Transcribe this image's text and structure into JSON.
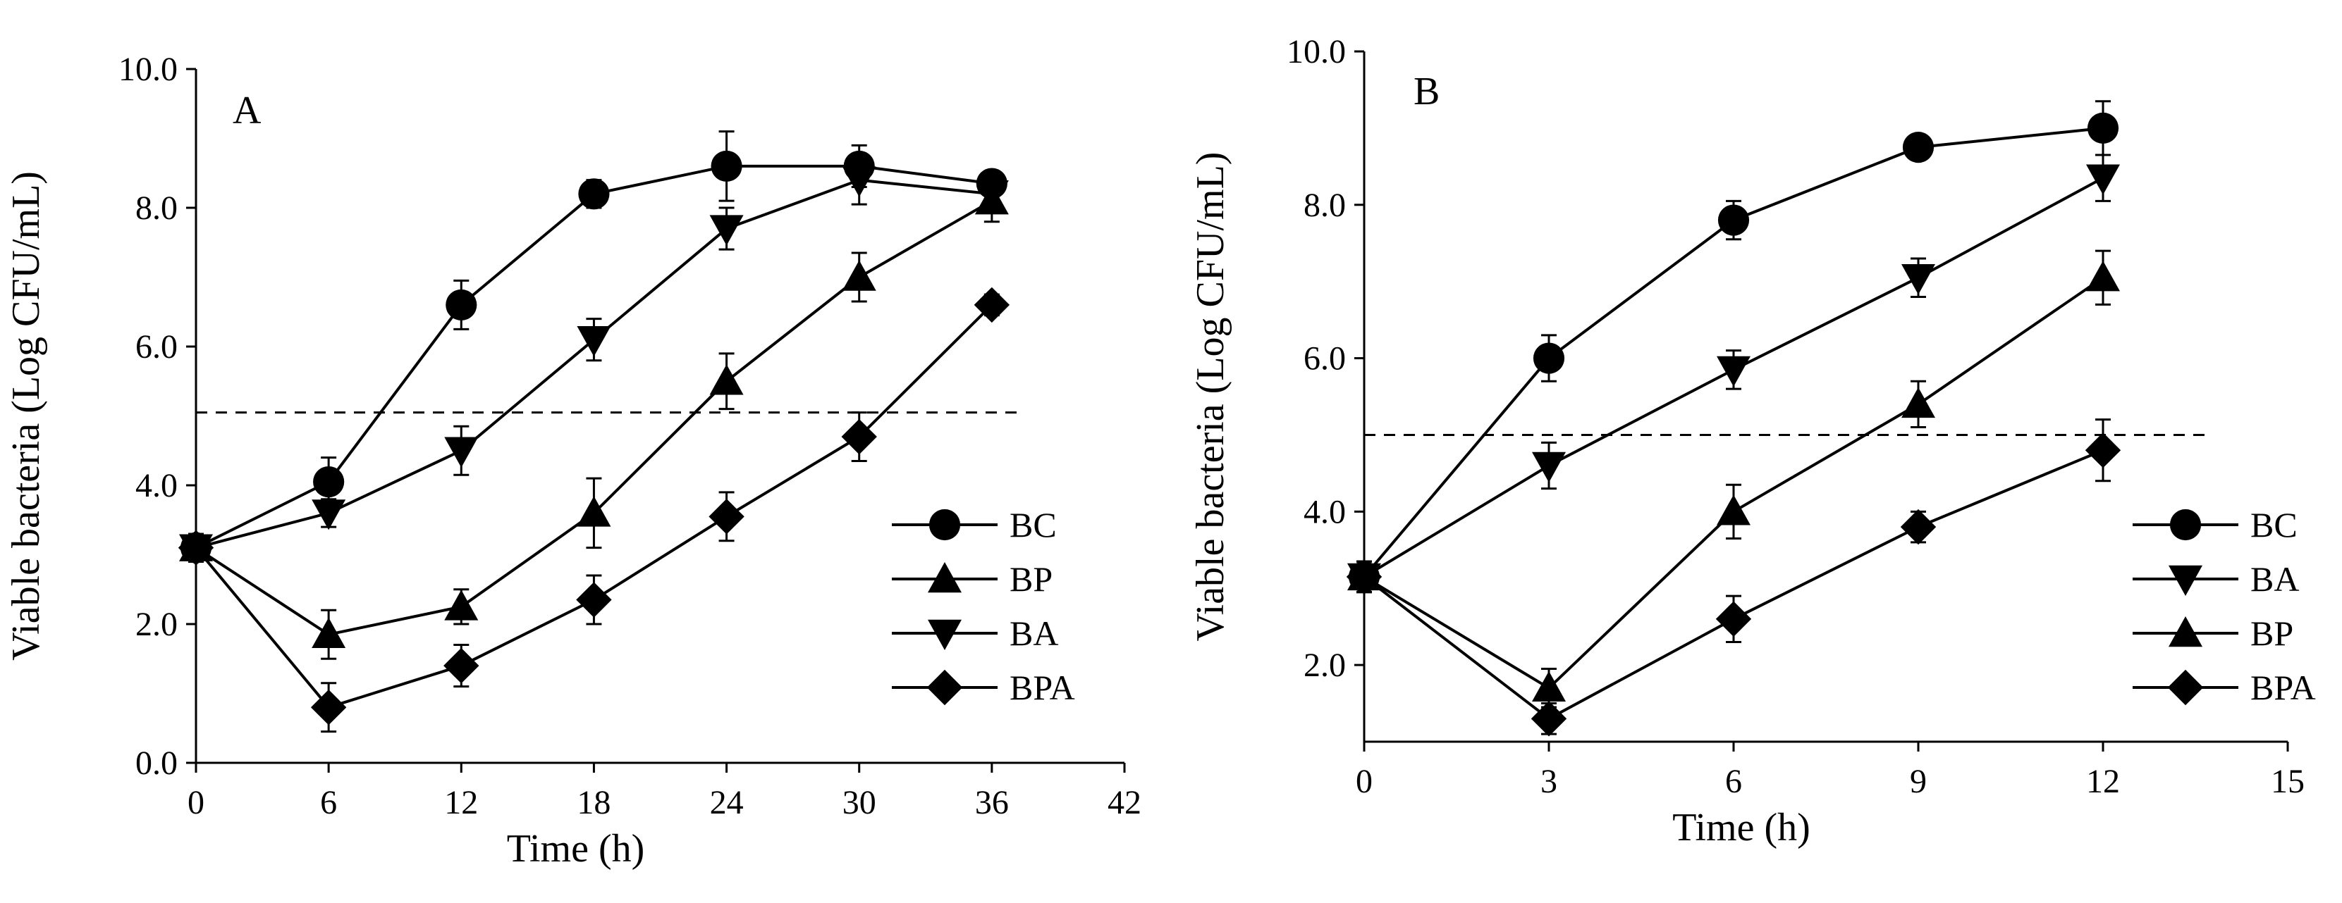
{
  "colors": {
    "ink": "#000000",
    "background": "#ffffff"
  },
  "chart_data": [
    {
      "type": "line",
      "panel": "A",
      "title": "",
      "xlabel": "Time (h)",
      "ylabel": "Viable bacteria (Log CFU/mL)",
      "xlim": [
        0,
        42
      ],
      "ylim": [
        0,
        10
      ],
      "xticks": [
        0,
        6,
        12,
        18,
        24,
        30,
        36,
        42
      ],
      "xtick_labels": [
        "0",
        "6",
        "12",
        "18",
        "24",
        "30",
        "36",
        "42"
      ],
      "yticks": [
        0,
        2,
        4,
        6,
        8,
        10
      ],
      "ytick_labels": [
        "0.0",
        "2.0",
        "4.0",
        "6.0",
        "8.0",
        "10.0"
      ],
      "threshold": 5.05,
      "legend_placement": "bottom-right",
      "series": [
        {
          "name": "BC",
          "marker": "circle",
          "x": [
            0,
            6,
            12,
            18,
            24,
            30,
            36
          ],
          "values": [
            3.1,
            4.05,
            6.6,
            8.2,
            8.6,
            8.6,
            8.35
          ],
          "errors": [
            0.2,
            0.35,
            0.35,
            0.2,
            0.5,
            0.3,
            0.15
          ]
        },
        {
          "name": "BP",
          "marker": "triangle-up",
          "x": [
            0,
            6,
            12,
            18,
            24,
            30,
            36
          ],
          "values": [
            3.1,
            1.85,
            2.25,
            3.6,
            5.5,
            7.0,
            8.1
          ],
          "errors": [
            0.2,
            0.35,
            0.25,
            0.5,
            0.4,
            0.35,
            0.3
          ]
        },
        {
          "name": "BA",
          "marker": "triangle-down",
          "x": [
            0,
            6,
            12,
            18,
            24,
            30,
            36
          ],
          "values": [
            3.1,
            3.6,
            4.5,
            6.1,
            7.7,
            8.4,
            8.2
          ],
          "errors": [
            0.2,
            0.2,
            0.35,
            0.3,
            0.3,
            0.35,
            0.2
          ]
        },
        {
          "name": "BPA",
          "marker": "diamond",
          "x": [
            0,
            6,
            12,
            18,
            24,
            30,
            36
          ],
          "values": [
            3.1,
            0.8,
            1.4,
            2.35,
            3.55,
            4.7,
            6.6
          ],
          "errors": [
            0.2,
            0.35,
            0.3,
            0.35,
            0.35,
            0.35,
            0.15
          ]
        }
      ]
    },
    {
      "type": "line",
      "panel": "B",
      "title": "",
      "xlabel": "Time (h)",
      "ylabel": "Viable bacteria (Log CFU/mL)",
      "xlim": [
        0,
        15
      ],
      "ylim": [
        1,
        10
      ],
      "xticks": [
        0,
        3,
        6,
        9,
        12,
        15
      ],
      "xtick_labels": [
        "0",
        "3",
        "6",
        "9",
        "12",
        "15"
      ],
      "yticks": [
        2,
        4,
        6,
        8,
        10
      ],
      "ytick_labels": [
        "2.0",
        "4.0",
        "6.0",
        "8.0",
        "10.0"
      ],
      "threshold": 5.0,
      "legend_placement": "bottom-right",
      "series": [
        {
          "name": "BC",
          "marker": "circle",
          "x": [
            0,
            3,
            6,
            9,
            12
          ],
          "values": [
            3.15,
            6.0,
            7.8,
            8.75,
            9.0
          ],
          "errors": [
            0.2,
            0.3,
            0.25,
            0.15,
            0.35
          ]
        },
        {
          "name": "BA",
          "marker": "triangle-down",
          "x": [
            0,
            3,
            6,
            9,
            12
          ],
          "values": [
            3.15,
            4.6,
            5.85,
            7.05,
            8.35
          ],
          "errors": [
            0.2,
            0.3,
            0.25,
            0.25,
            0.3
          ]
        },
        {
          "name": "BP",
          "marker": "triangle-up",
          "x": [
            0,
            3,
            6,
            9,
            12
          ],
          "values": [
            3.15,
            1.7,
            4.0,
            5.4,
            7.05
          ],
          "errors": [
            0.2,
            0.25,
            0.35,
            0.3,
            0.35
          ]
        },
        {
          "name": "BPA",
          "marker": "diamond",
          "x": [
            0,
            3,
            6,
            9,
            12
          ],
          "values": [
            3.15,
            1.3,
            2.6,
            3.8,
            4.8
          ],
          "errors": [
            0.2,
            0.2,
            0.3,
            0.2,
            0.4
          ]
        }
      ]
    }
  ]
}
